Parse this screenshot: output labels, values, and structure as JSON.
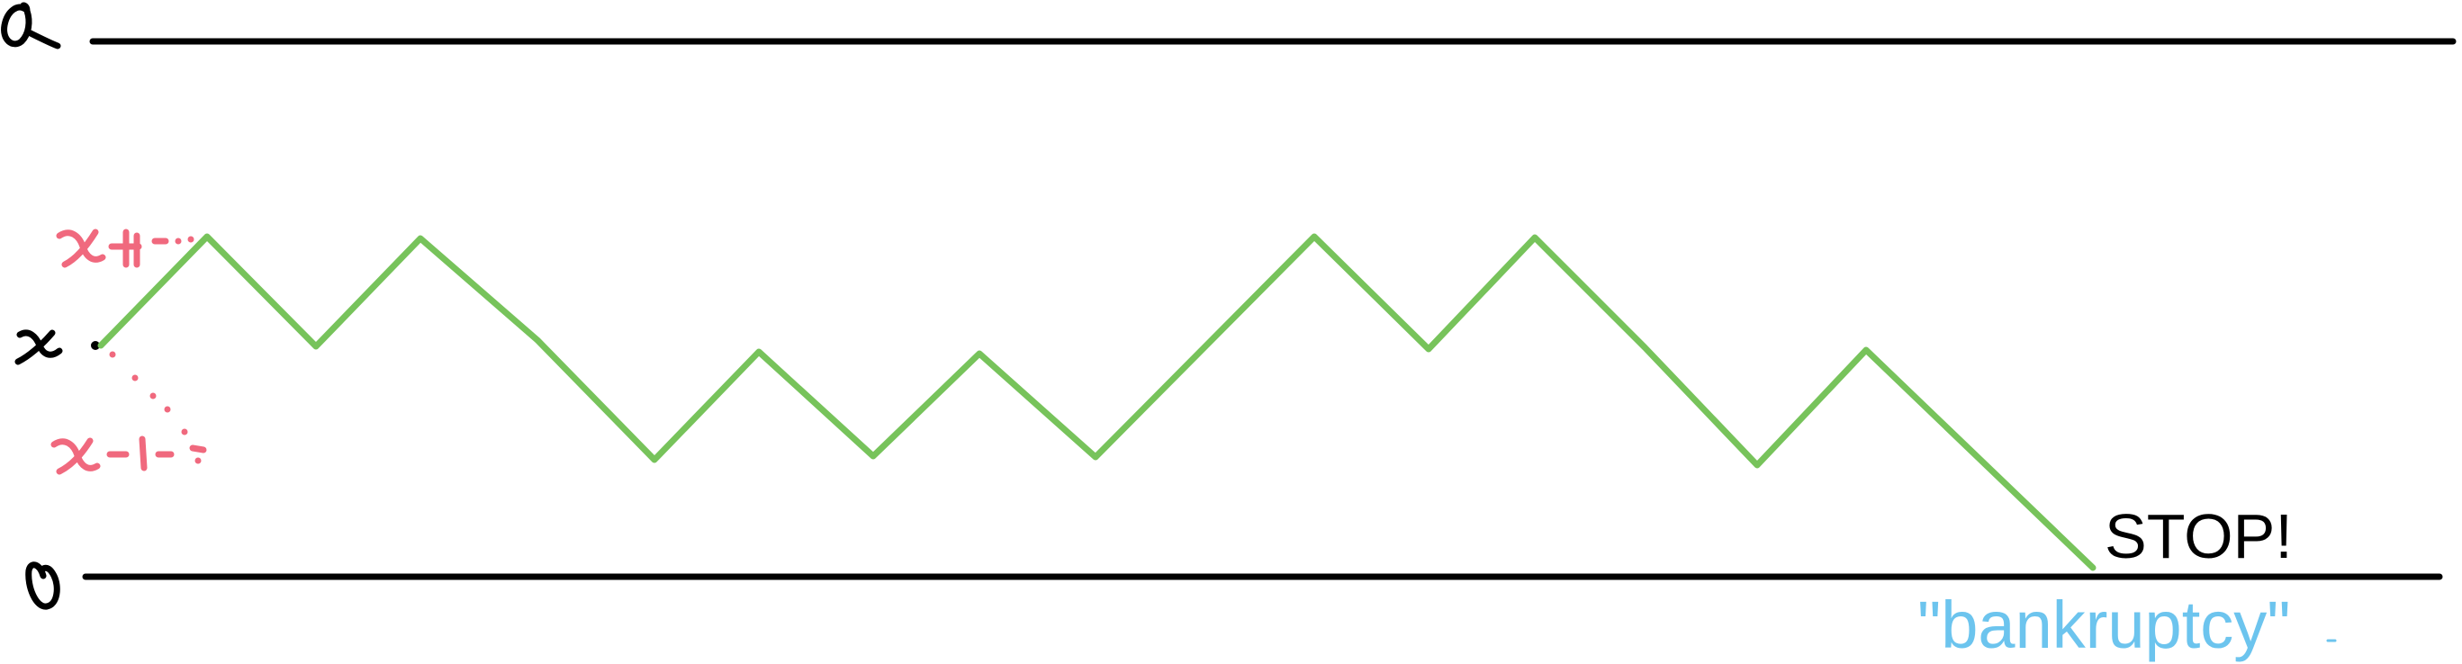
{
  "diagram": {
    "colors": {
      "lines": "#000000",
      "walk": "#77c35b",
      "step_labels": "#f0697e",
      "bankruptcy": "#6cc4ee"
    },
    "labels": {
      "top_boundary": "a",
      "bottom_boundary": "0",
      "start": "x",
      "step_up": "x+1",
      "step_down": "x-1"
    },
    "annotations": {
      "stop": "STOP!",
      "bankruptcy": "\"bankruptcy\""
    }
  }
}
